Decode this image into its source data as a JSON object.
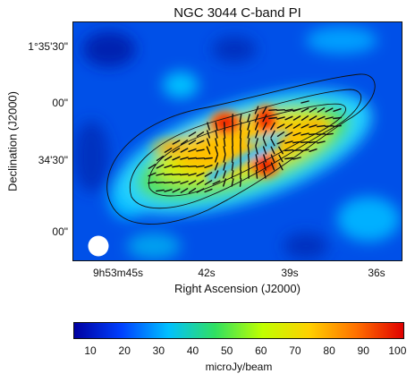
{
  "chart_data": {
    "type": "heatmap",
    "title": "NGC 3044   C-band  PI",
    "xlabel": "Right Ascension (J2000)",
    "ylabel": "Declination (J2000)",
    "x_ticks": [
      "9h53m45s",
      "42s",
      "39s",
      "36s"
    ],
    "y_ticks": [
      "1°35'30\"",
      "00\"",
      "34'30\"",
      "00\""
    ],
    "colorbar": {
      "label": "microJy/beam",
      "ticks": [
        "10",
        "20",
        "30",
        "40",
        "50",
        "60",
        "70",
        "80",
        "90",
        "100"
      ],
      "range": [
        5,
        102
      ],
      "colormap": [
        "#0000a0",
        "#0040ff",
        "#00c0ff",
        "#30e060",
        "#c0ff00",
        "#ffd000",
        "#ff7000",
        "#e00000"
      ]
    },
    "features": {
      "peak_value": 100,
      "background_level": 15,
      "contours": 3,
      "beam": "circle"
    }
  }
}
